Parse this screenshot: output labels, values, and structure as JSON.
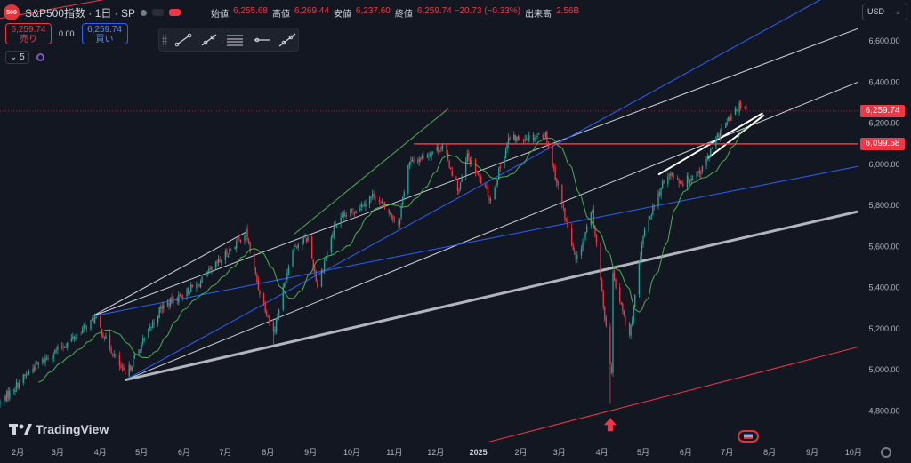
{
  "header": {
    "symbol_badge": "500",
    "symbol": "S&P500指数 · 1日 · SP",
    "ohlc": [
      {
        "key": "始値",
        "value": "6,255.68"
      },
      {
        "key": "高値",
        "value": "6,269.44"
      },
      {
        "key": "安値",
        "value": "6,237.60"
      },
      {
        "key": "終値",
        "value": "6,259.74 −20.73 (−0.33%)"
      },
      {
        "key": "出来高",
        "value": "2.56B"
      }
    ]
  },
  "trade": {
    "sell_price": "6,259.74",
    "sell_label": "売り",
    "spread": "0.00",
    "buy_price": "6,259.74",
    "buy_label": "買い"
  },
  "indicator": {
    "count": "5",
    "chevron": "⌄"
  },
  "toolbar": {
    "tools": [
      "trend-line-tool",
      "ray-tool",
      "fib-tool",
      "horizontal-ray-tool",
      "extended-line-tool"
    ]
  },
  "currency": {
    "label": "USD",
    "chevron": "⌄"
  },
  "price_labels": {
    "last": "6,259.74",
    "resistance": "6,099.58"
  },
  "branding": {
    "name": "TradingView"
  },
  "colors": {
    "background": "#131722",
    "up": "#26a69a",
    "down": "#f23645",
    "white_line": "#d1d4dc",
    "blue_line": "#2962ff",
    "green_line": "#4caf50",
    "red_line": "#f23645",
    "gray_line": "#b2b5be"
  },
  "chart_data": {
    "type": "candlestick",
    "title": "",
    "ylim": [
      4650,
      6800
    ],
    "y_ticks": [
      4800,
      5000,
      5200,
      5400,
      5600,
      5800,
      6000,
      6200,
      6400,
      6600
    ],
    "y_tick_labels": [
      "4,800.00",
      "5,000.00",
      "5,200.00",
      "5,400.00",
      "5,600.00",
      "5,800.00",
      "6,000.00",
      "6,200.00",
      "6,400.00",
      "6,600.00"
    ],
    "x_months": [
      {
        "label": "2月",
        "date": "2024-02-01"
      },
      {
        "label": "3月",
        "date": "2024-03-01"
      },
      {
        "label": "4月",
        "date": "2024-04-01"
      },
      {
        "label": "5月",
        "date": "2024-05-01"
      },
      {
        "label": "6月",
        "date": "2024-06-01"
      },
      {
        "label": "7月",
        "date": "2024-07-01"
      },
      {
        "label": "8月",
        "date": "2024-08-01"
      },
      {
        "label": "9月",
        "date": "2024-09-01"
      },
      {
        "label": "10月",
        "date": "2024-10-01"
      },
      {
        "label": "11月",
        "date": "2024-11-01"
      },
      {
        "label": "12月",
        "date": "2024-12-01"
      },
      {
        "label": "2025",
        "date": "2025-01-01"
      },
      {
        "label": "2月",
        "date": "2025-02-01"
      },
      {
        "label": "3月",
        "date": "2025-03-01"
      },
      {
        "label": "4月",
        "date": "2025-04-01"
      },
      {
        "label": "5月",
        "date": "2025-05-01"
      },
      {
        "label": "6月",
        "date": "2025-06-01"
      },
      {
        "label": "7月",
        "date": "2025-07-01"
      },
      {
        "label": "8月",
        "date": "2025-08-01"
      },
      {
        "label": "9月",
        "date": "2025-09-01"
      },
      {
        "label": "10月",
        "date": "2025-10-01"
      }
    ],
    "x_range": [
      "2024-01-19",
      "2025-10-04"
    ],
    "price_anchors": [
      {
        "date": "2024-01-19",
        "price": 4840
      },
      {
        "date": "2024-02-12",
        "price": 5010
      },
      {
        "date": "2024-03-08",
        "price": 5130
      },
      {
        "date": "2024-03-28",
        "price": 5250
      },
      {
        "date": "2024-04-19",
        "price": 4967
      },
      {
        "date": "2024-05-15",
        "price": 5300
      },
      {
        "date": "2024-06-12",
        "price": 5420
      },
      {
        "date": "2024-07-16",
        "price": 5670
      },
      {
        "date": "2024-07-25",
        "price": 5400
      },
      {
        "date": "2024-08-05",
        "price": 5180
      },
      {
        "date": "2024-08-19",
        "price": 5600
      },
      {
        "date": "2024-08-30",
        "price": 5640
      },
      {
        "date": "2024-09-06",
        "price": 5410
      },
      {
        "date": "2024-09-19",
        "price": 5710
      },
      {
        "date": "2024-10-17",
        "price": 5850
      },
      {
        "date": "2024-11-04",
        "price": 5710
      },
      {
        "date": "2024-11-11",
        "price": 6000
      },
      {
        "date": "2024-12-06",
        "price": 6090
      },
      {
        "date": "2024-12-18",
        "price": 5870
      },
      {
        "date": "2024-12-24",
        "price": 6040
      },
      {
        "date": "2025-01-10",
        "price": 5830
      },
      {
        "date": "2025-01-23",
        "price": 6120
      },
      {
        "date": "2025-02-19",
        "price": 6144
      },
      {
        "date": "2025-03-13",
        "price": 5520
      },
      {
        "date": "2025-03-25",
        "price": 5770
      },
      {
        "date": "2025-04-08",
        "price": 4982
      },
      {
        "date": "2025-04-09",
        "price": 5456
      },
      {
        "date": "2025-04-21",
        "price": 5160
      },
      {
        "date": "2025-05-02",
        "price": 5690
      },
      {
        "date": "2025-05-19",
        "price": 5960
      },
      {
        "date": "2025-05-30",
        "price": 5910
      },
      {
        "date": "2025-06-13",
        "price": 5980
      },
      {
        "date": "2025-06-27",
        "price": 6170
      },
      {
        "date": "2025-07-10",
        "price": 6280
      },
      {
        "date": "2025-07-15",
        "price": 6259.74
      }
    ],
    "candle_dates": [
      "2024-01-19",
      "2025-07-15"
    ],
    "intraday_extremes": [
      {
        "date": "2024-08-05",
        "low": 5120
      },
      {
        "date": "2025-04-07",
        "low": 4835
      }
    ],
    "moving_average": {
      "color": "#4caf50",
      "period": "medium"
    },
    "horizontal_levels": [
      {
        "price": 6099.58,
        "color": "#f23645",
        "from": "2024-11-15",
        "to": "2025-10-04"
      }
    ],
    "trendlines": [
      {
        "color": "#d1d4dc",
        "p1": {
          "date": "2024-03-26",
          "price": 5260
        },
        "p2": {
          "date": "2025-10-04",
          "price": 6660
        }
      },
      {
        "color": "#d1d4dc",
        "p1": {
          "date": "2024-03-26",
          "price": 5260
        },
        "p2": {
          "date": "2024-07-16",
          "price": 5670
        }
      },
      {
        "color": "#d1d4dc",
        "p1": {
          "date": "2024-04-19",
          "price": 4950
        },
        "p2": {
          "date": "2025-10-04",
          "price": 6400
        }
      },
      {
        "color": "#2962ff",
        "p1": {
          "date": "2024-04-19",
          "price": 4950
        },
        "p2": {
          "date": "2025-10-04",
          "price": 6900
        }
      },
      {
        "color": "#2962ff",
        "p1": {
          "date": "2024-03-26",
          "price": 5260
        },
        "p2": {
          "date": "2025-10-04",
          "price": 5990
        }
      },
      {
        "color": "#b2b5be",
        "width": 3,
        "p1": {
          "date": "2024-04-19",
          "price": 4950
        },
        "p2": {
          "date": "2025-10-04",
          "price": 5770
        }
      },
      {
        "color": "#f23645",
        "p1": {
          "date": "2024-01-19",
          "price": 6710
        },
        "p2": {
          "date": "2024-05-13",
          "price": 6850
        }
      },
      {
        "color": "#f23645",
        "p1": {
          "date": "2024-12-23",
          "price": 4620
        },
        "p2": {
          "date": "2025-10-04",
          "price": 5110
        }
      },
      {
        "color": "#4caf50",
        "p1": {
          "date": "2024-08-20",
          "price": 5660
        },
        "p2": {
          "date": "2024-12-10",
          "price": 6270
        }
      },
      {
        "color": "#ffffff",
        "width": 2,
        "p1": {
          "date": "2025-05-12",
          "price": 5950
        },
        "p2": {
          "date": "2025-07-27",
          "price": 6250
        }
      },
      {
        "color": "#ffffff",
        "width": 2,
        "p1": {
          "date": "2025-06-17",
          "price": 6030
        },
        "p2": {
          "date": "2025-07-28",
          "price": 6240
        }
      }
    ],
    "markers": [
      {
        "type": "arrow-up",
        "date": "2025-04-07",
        "price": 4835,
        "color": "#f23645"
      }
    ],
    "grid": false,
    "legend": ""
  }
}
